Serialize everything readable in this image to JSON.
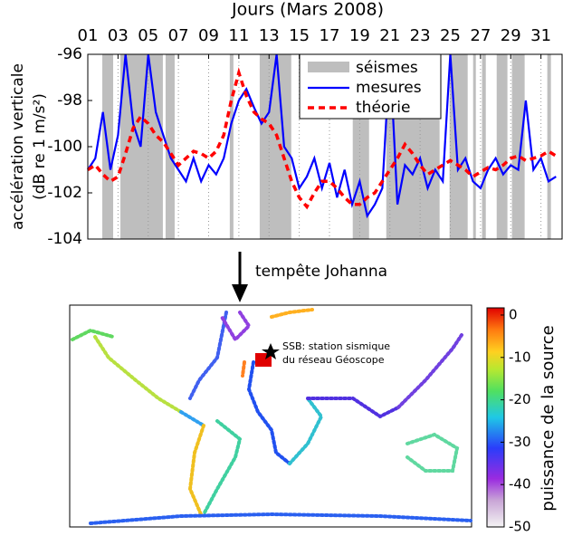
{
  "chart_data": [
    {
      "type": "line",
      "title": "Jours (Mars 2008)",
      "ylabel": [
        "accélération verticale",
        "(dB re 1 m/s²)"
      ],
      "annotation": "tempête Johanna",
      "xlim": [
        1,
        32.4
      ],
      "ylim": [
        -104,
        -96
      ],
      "xticks": [
        {
          "value": 1,
          "label": "01"
        },
        {
          "value": 3,
          "label": "03"
        },
        {
          "value": 5,
          "label": "05"
        },
        {
          "value": 7,
          "label": "07"
        },
        {
          "value": 9,
          "label": "09"
        },
        11,
        13,
        15,
        17,
        19,
        21,
        23,
        25,
        27,
        29,
        31
      ],
      "yticks": [
        -104,
        -102,
        -100,
        -98,
        -96
      ],
      "grid": "x",
      "shading": {
        "name": "séismes",
        "color": "#bebebe",
        "intervals": [
          [
            1.96,
            2.68
          ],
          [
            3.16,
            5.97
          ],
          [
            6.15,
            6.75
          ],
          [
            10.4,
            10.64
          ],
          [
            12.38,
            14.47
          ],
          [
            18.54,
            19.62
          ],
          [
            20.76,
            24.29
          ],
          [
            24.95,
            26.15
          ],
          [
            26.51,
            26.69
          ],
          [
            27.1,
            27.35
          ],
          [
            28.07,
            28.78
          ],
          [
            29.08,
            29.92
          ],
          [
            31.42,
            31.66
          ]
        ]
      },
      "x": [
        1,
        1.5,
        2,
        2.5,
        3,
        3.5,
        4,
        4.5,
        5,
        5.5,
        6,
        6.5,
        7,
        7.5,
        8,
        8.5,
        9,
        9.5,
        10,
        10.5,
        11,
        11.5,
        12,
        12.5,
        13,
        13.5,
        14,
        14.5,
        15,
        15.5,
        16,
        16.5,
        17,
        17.5,
        18,
        18.5,
        19,
        19.5,
        20,
        20.5,
        21,
        21.5,
        22,
        22.5,
        23,
        23.5,
        24,
        24.5,
        25,
        25.5,
        26,
        26.5,
        27,
        27.5,
        28,
        28.5,
        29,
        29.5,
        30,
        30.5,
        31,
        31.5,
        32
      ],
      "series": [
        {
          "name": "mesures",
          "color": "#0000ff",
          "dash": false,
          "values": [
            -101,
            -100.5,
            -98.5,
            -101,
            -99.5,
            -96,
            -99,
            -100,
            -96,
            -98.5,
            -99.5,
            -100.5,
            -101,
            -101.5,
            -100.5,
            -101.5,
            -100.8,
            -101.2,
            -100.5,
            -99,
            -98,
            -97.5,
            -98.3,
            -99,
            -98.5,
            -96,
            -100,
            -100.5,
            -101.8,
            -101.3,
            -100.5,
            -101.8,
            -100.7,
            -102.2,
            -101,
            -102.5,
            -101.5,
            -103,
            -102.5,
            -101.8,
            -96,
            -102.5,
            -100.8,
            -101.2,
            -100.5,
            -101.8,
            -101,
            -101.5,
            -96,
            -101,
            -100.5,
            -101.5,
            -101.8,
            -101,
            -100.5,
            -101.2,
            -100.8,
            -101,
            -98,
            -101,
            -100.5,
            -101.5,
            -101.3
          ]
        },
        {
          "name": "théorie",
          "color": "#ff0000",
          "dash": true,
          "values": [
            -101,
            -100.8,
            -101.2,
            -101.5,
            -101.3,
            -100.3,
            -99.2,
            -98.7,
            -99,
            -99.5,
            -99.8,
            -100.3,
            -100.8,
            -100.5,
            -100.2,
            -100.3,
            -100.5,
            -100.2,
            -99.5,
            -98,
            -96.8,
            -97.8,
            -98.5,
            -98.8,
            -99,
            -99.5,
            -100.5,
            -101.5,
            -102.2,
            -102.6,
            -102,
            -101.5,
            -101.5,
            -101.8,
            -102.2,
            -102.5,
            -102.5,
            -102.2,
            -102,
            -101.5,
            -101,
            -100.5,
            -99.9,
            -100.3,
            -100.8,
            -101.2,
            -101,
            -100.8,
            -100.6,
            -100.8,
            -101,
            -101.3,
            -101.1,
            -100.9,
            -101,
            -100.8,
            -100.5,
            -100.4,
            -100.6,
            -100.5,
            -100.4,
            -100.2,
            -100.4
          ]
        }
      ]
    },
    {
      "type": "map",
      "annotations": [
        "SSB: station sismique",
        "du réseau Géoscope"
      ],
      "colorbar_label": "puissance de la source",
      "clim": [
        -50,
        1.7
      ],
      "cticks": [
        0,
        -10,
        -20,
        -30,
        -40,
        -50
      ]
    }
  ]
}
